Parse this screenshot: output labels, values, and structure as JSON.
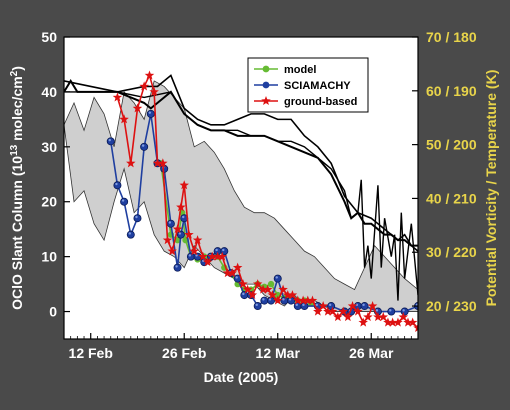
{
  "chart_data": {
    "type": "line",
    "xlabel": "Date (2005)",
    "ylabel_left_main": "OClO Slant Column (10",
    "ylabel_left_exp": "13",
    "ylabel_left_mid": " molec/cm",
    "ylabel_left_exp2": "2",
    "ylabel_left_end": ")",
    "ylabel_right": "Potential Vorticity / Temperature (K)",
    "xticks": [
      {
        "day": 12,
        "label": "12 Feb"
      },
      {
        "day": 26,
        "label": "26 Feb"
      },
      {
        "day": 40,
        "label": "12 Mar"
      },
      {
        "day": 54,
        "label": "26 Mar"
      }
    ],
    "xlim": [
      8,
      61
    ],
    "ylim": [
      -5,
      50
    ],
    "yticks_left": [
      0,
      10,
      20,
      30,
      40,
      50
    ],
    "yticks_right": [
      {
        "y": 1,
        "label": "20 / 230"
      },
      {
        "y": 10.8,
        "label": "30 / 220"
      },
      {
        "y": 20.6,
        "label": "40 / 210"
      },
      {
        "y": 30.4,
        "label": "50 / 200"
      },
      {
        "y": 40.2,
        "label": "60 / 190"
      },
      {
        "y": 50,
        "label": "70 / 180"
      }
    ],
    "colors": {
      "background": "#4a4a4a",
      "plot_bg": "#ffffff",
      "shade": "#cfcfcf",
      "model": "#66bb33",
      "sciamachy": "#1f3fa0",
      "ground": "#dd1111",
      "right_axis": "#e8d44a",
      "left_axis": "#ffffff"
    },
    "legend": [
      {
        "name": "model",
        "color": "#66bb33",
        "marker": "circle"
      },
      {
        "name": "SCIAMACHY",
        "color": "#1f3fa0",
        "marker": "circle"
      },
      {
        "name": "ground-based",
        "color": "#dd1111",
        "marker": "star"
      }
    ],
    "series": [
      {
        "name": "model",
        "marker": "circle",
        "x": [
          22.5,
          24.0,
          25.0,
          25.7,
          26.2,
          27.0,
          28.0,
          29.0,
          30.0,
          31.0,
          32.0,
          33.0,
          34.0,
          35.0,
          36.0,
          37.0,
          38.0,
          39.0,
          40.0,
          41.0,
          42.0,
          43.0,
          44.0,
          45.0
        ],
        "y": [
          27,
          14,
          13,
          18,
          13,
          10,
          9.5,
          10,
          10,
          10,
          8,
          7,
          5,
          4,
          4,
          5,
          4.5,
          5,
          3,
          2.5,
          2.5,
          2,
          2,
          1.5
        ]
      },
      {
        "name": "SCIAMACHY",
        "marker": "circle",
        "x": [
          15.0,
          16.0,
          17.0,
          18.0,
          19.0,
          20.0,
          21.0,
          22.0,
          23.0,
          24.0,
          25.0,
          25.5,
          26.0,
          27.0,
          28.0,
          29.0,
          30.0,
          31.0,
          32.0,
          33.0,
          34.0,
          35.0,
          36.0,
          37.0,
          38.0,
          39.0,
          40.0,
          41.0,
          42.0,
          43.0,
          44.0,
          46.0,
          48.0,
          50.0,
          51.0,
          52.0,
          53.0,
          55.0,
          57.0,
          59.0,
          61.0
        ],
        "y": [
          31,
          23,
          20,
          14,
          17,
          30,
          36,
          27,
          26,
          16,
          8,
          14,
          17,
          10,
          10,
          9,
          10,
          11,
          11,
          7,
          6,
          3,
          3,
          1,
          2,
          2,
          6,
          2,
          2,
          1,
          1,
          1,
          1,
          0,
          0,
          1,
          1,
          0,
          0,
          0,
          1
        ]
      },
      {
        "name": "ground-based",
        "marker": "star",
        "x": [
          16.0,
          17.0,
          18.0,
          19.0,
          20.0,
          20.8,
          21.5,
          22.0,
          22.8,
          23.5,
          24.2,
          25.0,
          25.5,
          26.0,
          26.7,
          27.5,
          28.0,
          28.8,
          29.5,
          30.2,
          31.0,
          31.7,
          32.5,
          33.2,
          34.0,
          34.8,
          35.5,
          36.2,
          37.0,
          37.8,
          38.5,
          39.2,
          40.0,
          40.8,
          41.5,
          42.2,
          43.0,
          43.8,
          44.5,
          45.2,
          46.0,
          46.8,
          47.5,
          48.2,
          49.0,
          49.8,
          50.5,
          51.2,
          52.0,
          52.8,
          53.5,
          54.2,
          55.0,
          55.8,
          56.5,
          57.2,
          58.0,
          58.8,
          59.5,
          60.2,
          61.0
        ],
        "y": [
          39,
          35,
          27,
          37,
          41,
          43,
          40,
          27,
          27,
          13,
          11,
          15,
          19,
          23,
          14,
          11,
          13,
          10,
          9,
          10,
          10,
          10,
          7,
          7,
          8,
          5,
          4,
          3,
          5,
          4,
          4,
          3,
          2,
          4,
          3,
          3,
          2,
          2,
          2,
          2,
          0,
          1,
          0,
          0,
          -1,
          0,
          -1,
          1,
          0,
          -2,
          -1,
          1,
          -1,
          -1,
          -2,
          -2,
          -2,
          -1,
          -2,
          -2,
          -3
        ]
      }
    ],
    "shaded_envelope": {
      "x": [
        8,
        9.5,
        11,
        12.5,
        14,
        15.5,
        17,
        18.5,
        20,
        21.5,
        23,
        24.5,
        26,
        27.5,
        29,
        30.5,
        32,
        33.5,
        35,
        36.5,
        38,
        39.5,
        41,
        42.5,
        44,
        45.5,
        47,
        48.5,
        50,
        51.5,
        53,
        54.5,
        56,
        57.5,
        59,
        61
      ],
      "y": [
        34,
        38,
        33,
        39,
        36,
        30,
        40,
        38,
        35,
        42,
        41,
        39,
        37,
        30,
        31,
        29,
        26,
        22,
        19,
        18,
        18,
        17,
        15,
        13,
        11,
        10,
        8,
        6,
        5,
        4,
        8,
        12,
        10,
        8,
        6,
        4
      ],
      "low": [
        34,
        20,
        22,
        16,
        13,
        20,
        26,
        18,
        20,
        14,
        11,
        10,
        8,
        12,
        10,
        8,
        7,
        6,
        5,
        5,
        3,
        2,
        1,
        3,
        1,
        2,
        1,
        0,
        0,
        0,
        0,
        0,
        0,
        0,
        0,
        0
      ]
    },
    "pv_line_1": {
      "x": [
        8,
        9,
        10,
        11,
        12,
        13,
        14,
        16,
        18,
        20,
        21,
        22,
        23,
        24,
        26,
        28,
        30,
        32,
        34,
        36,
        38,
        40,
        42,
        44,
        46,
        48,
        50,
        51,
        52,
        53,
        54,
        55,
        56,
        57,
        58,
        59,
        60,
        61
      ],
      "y": [
        40,
        42,
        40,
        40,
        40,
        40,
        40,
        40,
        39,
        38,
        37,
        38,
        39,
        40,
        36,
        34,
        33,
        33,
        32,
        32,
        32,
        31,
        30,
        29,
        28,
        25,
        20,
        17,
        18,
        16,
        16,
        15,
        14,
        14,
        13,
        13,
        12,
        12
      ]
    },
    "pv_line_2": {
      "x": [
        8,
        12,
        16,
        20,
        22,
        24,
        26,
        28,
        30,
        32,
        34,
        36,
        38,
        40,
        42,
        44,
        46,
        48,
        50,
        52,
        54,
        55,
        56,
        57,
        58,
        59,
        60,
        61
      ],
      "y": [
        42,
        41,
        40,
        41,
        41,
        43,
        37,
        35,
        34,
        34,
        35,
        36,
        36,
        35,
        35,
        32,
        30,
        27,
        21,
        18,
        17,
        16,
        15,
        14,
        13,
        14,
        12,
        11
      ]
    },
    "temp_line": {
      "x": [
        8,
        12,
        16,
        20,
        24,
        26,
        28,
        30,
        32,
        34,
        36,
        38,
        40,
        42,
        44,
        46,
        48,
        50,
        51,
        52,
        52.5,
        53,
        53.5,
        54,
        55,
        55.5,
        56,
        57,
        57.5,
        58,
        58.5,
        59,
        60,
        61
      ],
      "y": [
        40,
        40,
        40,
        39,
        40,
        36,
        34,
        33,
        33,
        33,
        32,
        32,
        31,
        31,
        30,
        28,
        26,
        22,
        17,
        18,
        24,
        8,
        12,
        6,
        23,
        8,
        17,
        10,
        14,
        2,
        18,
        6,
        16,
        3
      ]
    }
  }
}
